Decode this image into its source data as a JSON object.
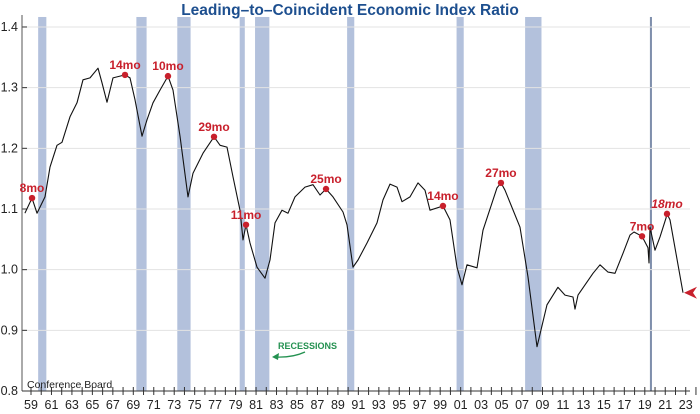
{
  "chart_data": {
    "type": "line",
    "title": "Leading–to–Coincident Economic Index Ratio",
    "source": "Conference Board",
    "recession_label": "RECESSIONS",
    "xlim": [
      1959,
      2024
    ],
    "ylim": [
      0.8,
      1.4
    ],
    "yticks": [
      "0.8",
      "0.9",
      "1.0",
      "1.1",
      "1.2",
      "1.3",
      "1.4"
    ],
    "xtick_labels": [
      "59",
      "61",
      "63",
      "65",
      "67",
      "69",
      "71",
      "73",
      "75",
      "77",
      "79",
      "81",
      "83",
      "85",
      "87",
      "89",
      "91",
      "93",
      "95",
      "97",
      "99",
      "01",
      "03",
      "05",
      "07",
      "09",
      "11",
      "13",
      "15",
      "17",
      "19",
      "21",
      "23"
    ],
    "grid": true,
    "colors": {
      "line": "#111111",
      "recession": "#b3c1dc",
      "marker": "#c8202c",
      "title": "#1d4f8f",
      "recession_label": "#239150"
    },
    "recessions": [
      [
        1960.3,
        1961.1
      ],
      [
        1969.9,
        1970.9
      ],
      [
        1973.9,
        1975.2
      ],
      [
        1980.0,
        1980.5
      ],
      [
        1981.5,
        1982.9
      ],
      [
        1990.5,
        1991.2
      ],
      [
        2001.2,
        2001.9
      ],
      [
        2007.9,
        2009.5
      ],
      [
        2020.1,
        2020.3
      ]
    ],
    "series": [
      {
        "x": [
          1959.0,
          1959.7,
          1960.19,
          1960.97,
          1961.46,
          1962.14,
          1962.63,
          1963.41,
          1964.1,
          1964.68,
          1965.37,
          1966.15,
          1966.54,
          1967.03,
          1967.62,
          1968.79,
          1969.28,
          1969.77,
          1970.45,
          1970.94,
          1971.53,
          1972.21,
          1972.99,
          1973.48,
          1974.17,
          1974.95,
          1975.44,
          1976.41,
          1977.49,
          1978.08,
          1978.76,
          1979.35,
          1980.03,
          1980.32,
          1980.62,
          1981.01,
          1981.69,
          1982.47,
          1982.96,
          1983.45,
          1984.14,
          1984.72,
          1985.41,
          1986.38,
          1987.17,
          1987.85,
          1988.44,
          1989.12,
          1990.1,
          1990.49,
          1991.08,
          1991.56,
          1992.44,
          1993.42,
          1994.01,
          1994.69,
          1995.38,
          1995.87,
          1996.65,
          1997.43,
          1998.11,
          1998.6,
          1999.87,
          2000.56,
          2001.24,
          2001.73,
          2002.22,
          2003.2,
          2003.78,
          2004.76,
          2005.15,
          2005.54,
          2005.93,
          2007.4,
          2008.18,
          2009.06,
          2010.04,
          2011.11,
          2011.8,
          2012.58,
          2012.78,
          2013.07,
          2014.54,
          2015.22,
          2016.0,
          2016.69,
          2017.47,
          2018.15,
          2018.54,
          2019.33,
          2019.91,
          2020.01,
          2020.11,
          2020.6,
          2021.09,
          2021.67,
          2021.77,
          2022.06,
          2023.33
        ],
        "y": [
          1.093,
          1.118,
          1.093,
          1.12,
          1.169,
          1.205,
          1.21,
          1.252,
          1.275,
          1.313,
          1.316,
          1.332,
          1.308,
          1.276,
          1.316,
          1.321,
          1.316,
          1.28,
          1.22,
          1.247,
          1.275,
          1.296,
          1.319,
          1.296,
          1.219,
          1.12,
          1.159,
          1.192,
          1.219,
          1.205,
          1.202,
          1.153,
          1.098,
          1.049,
          1.074,
          1.044,
          1.004,
          0.986,
          1.016,
          1.077,
          1.098,
          1.093,
          1.12,
          1.136,
          1.14,
          1.123,
          1.133,
          1.12,
          1.095,
          1.074,
          1.004,
          1.016,
          1.044,
          1.077,
          1.115,
          1.141,
          1.136,
          1.112,
          1.12,
          1.143,
          1.131,
          1.098,
          1.105,
          1.082,
          1.004,
          0.975,
          1.008,
          1.003,
          1.065,
          1.115,
          1.135,
          1.143,
          1.131,
          1.07,
          0.988,
          0.873,
          0.942,
          0.971,
          0.958,
          0.955,
          0.935,
          0.958,
          0.994,
          1.008,
          0.996,
          0.994,
          1.027,
          1.057,
          1.062,
          1.055,
          1.036,
          1.011,
          1.07,
          1.032,
          1.054,
          1.085,
          1.092,
          1.082,
          0.962
        ]
      }
    ],
    "annotations": [
      {
        "label": "8mo",
        "x": 1959.7,
        "y": 1.118,
        "italic": false
      },
      {
        "label": "14mo",
        "x": 1968.79,
        "y": 1.321,
        "italic": false
      },
      {
        "label": "10mo",
        "x": 1972.99,
        "y": 1.319,
        "italic": false
      },
      {
        "label": "29mo",
        "x": 1977.49,
        "y": 1.219,
        "italic": false
      },
      {
        "label": "11mo",
        "x": 1980.62,
        "y": 1.074,
        "italic": false
      },
      {
        "label": "25mo",
        "x": 1988.44,
        "y": 1.133,
        "italic": false
      },
      {
        "label": "14mo",
        "x": 1999.87,
        "y": 1.105,
        "italic": false
      },
      {
        "label": "27mo",
        "x": 2005.54,
        "y": 1.143,
        "italic": false
      },
      {
        "label": "7mo",
        "x": 2019.33,
        "y": 1.055,
        "italic": false
      },
      {
        "label": "18mo",
        "x": 2021.77,
        "y": 1.092,
        "italic": true
      }
    ],
    "latest_marker": {
      "x": 2023.33,
      "y": 0.962
    }
  }
}
